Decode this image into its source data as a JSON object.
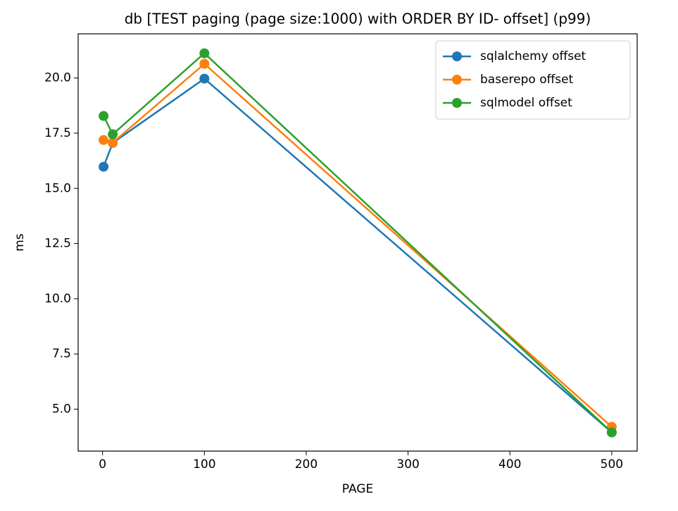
{
  "chart_data": {
    "type": "line",
    "title": "db [TEST paging (page size:1000) with ORDER BY ID- offset] (p99)",
    "x_label": "PAGE",
    "y_label": "ms",
    "x": [
      1,
      10,
      100,
      500
    ],
    "series": [
      {
        "name": "sqlalchemy offset",
        "color": "#1f77b4",
        "values": [
          15.98,
          17.06,
          19.97,
          3.95
        ]
      },
      {
        "name": "baserepo offset",
        "color": "#ff7f0e",
        "values": [
          17.19,
          17.07,
          20.64,
          4.2
        ]
      },
      {
        "name": "sqlmodel offset",
        "color": "#2ca02c",
        "values": [
          18.28,
          17.45,
          21.12,
          3.95
        ]
      }
    ],
    "xlim": [
      -23.95,
      524.95
    ],
    "ylim": [
      3.1,
      22.0
    ],
    "xticks": [
      0,
      100,
      200,
      300,
      400,
      500
    ],
    "yticks": [
      {
        "value": 5,
        "label": "5.0"
      },
      {
        "value": 7.5,
        "label": "7.5"
      },
      {
        "value": 10,
        "label": "10.0"
      },
      {
        "value": 12.5,
        "label": "12.5"
      },
      {
        "value": 15,
        "label": "15.0"
      },
      {
        "value": 17.5,
        "label": "17.5"
      },
      {
        "value": 20,
        "label": "20.0"
      }
    ],
    "legend": "upper right",
    "grid": false
  }
}
